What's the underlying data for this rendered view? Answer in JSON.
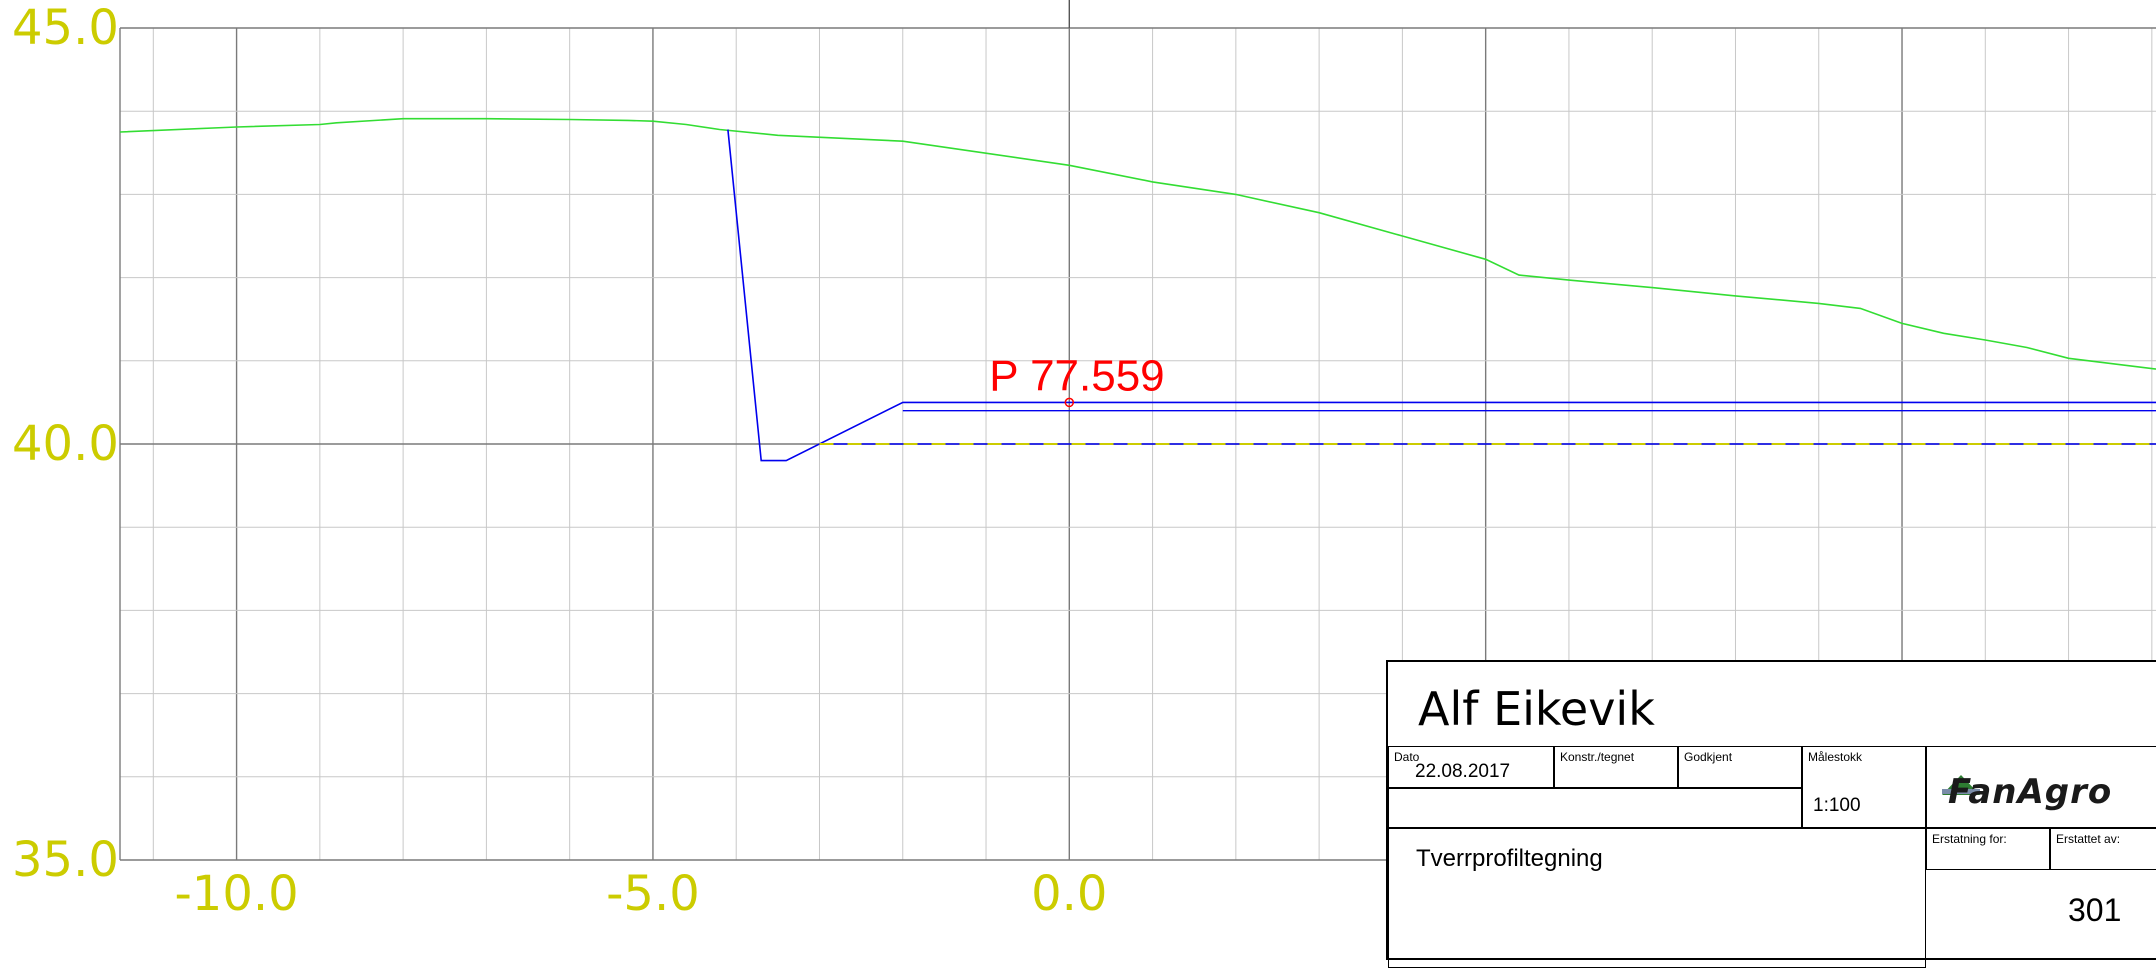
{
  "chart_data": {
    "type": "line",
    "title": "",
    "xlabel": "",
    "ylabel": "",
    "xlim": [
      -11.4,
      13.05
    ],
    "ylim": [
      35.0,
      45.0
    ],
    "x_ticks": [
      "-10.0",
      "-5.0",
      "0.0"
    ],
    "y_ticks": [
      "35.0",
      "40.0",
      "45.0"
    ],
    "grid": true,
    "colors": {
      "terrain": "#33dd33",
      "design": "#0000ee",
      "dashed": "#cccc00",
      "point": "#ff0000",
      "labels": "#cccc00"
    },
    "series": [
      {
        "x": [
          -11.4,
          -10,
          -9,
          -8.8,
          -8,
          -7.6,
          -7,
          -6,
          -5.3,
          -5,
          -4.6,
          -4.2,
          -3.5,
          -2,
          0,
          1,
          2,
          3,
          4,
          5,
          5.4,
          6,
          7,
          8,
          9,
          9.5,
          10,
          10.5,
          11,
          11.5,
          12,
          13.05
        ],
        "y": [
          43.75,
          43.81,
          43.84,
          43.86,
          43.91,
          43.91,
          43.91,
          43.9,
          43.89,
          43.88,
          43.84,
          43.78,
          43.71,
          43.64,
          43.35,
          43.15,
          43.0,
          42.78,
          42.5,
          42.22,
          42.03,
          41.97,
          41.88,
          41.78,
          41.69,
          41.63,
          41.45,
          41.33,
          41.25,
          41.16,
          41.03,
          40.9
        ]
      },
      {
        "x": [
          -4.1,
          -3.7,
          -3.4,
          -2.0,
          13.05
        ],
        "y": [
          43.78,
          39.8,
          39.8,
          40.5,
          40.5
        ]
      },
      {
        "x": [
          -2.0,
          13.05
        ],
        "y": [
          40.4,
          40.4
        ]
      },
      {
        "x": [
          -3.0,
          13.05
        ],
        "y": [
          40.0,
          40.0
        ]
      }
    ],
    "point": {
      "label": "P 77.559",
      "x": 0,
      "y": 40.5
    }
  },
  "titleblock": {
    "owner": "Alf Eikevik",
    "date_label": "Dato",
    "date_value": "22.08.2017",
    "drawn_label": "Konstr./tegnet",
    "approved_label": "Godkjent",
    "scale_label": "Målestokk",
    "scale_value": "1:100",
    "drawing_title": "Tverrprofiltegning",
    "company": "FanAgro",
    "replaces_label": "Erstatning for:",
    "replaced_by_label": "Erstattet av:",
    "drawing_number": "301"
  }
}
